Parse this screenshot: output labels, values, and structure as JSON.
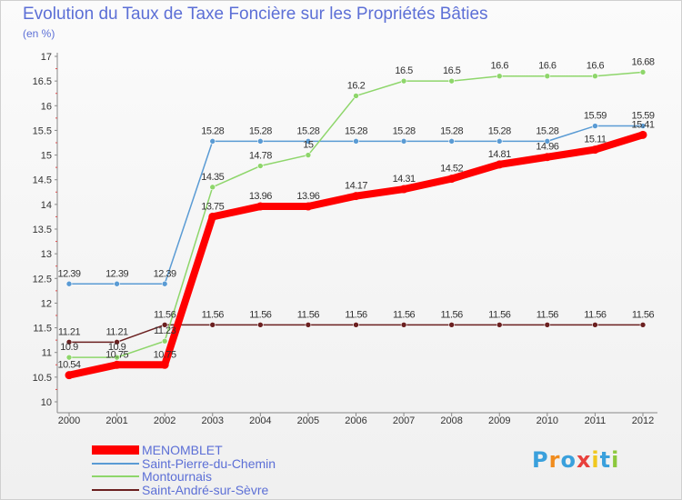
{
  "chart_data": {
    "type": "line",
    "title": "Evolution du Taux de Taxe Foncière sur les Propriétés Bâties",
    "unit_label": "(en %)",
    "xlabel": "",
    "ylabel": "(en %)",
    "categories": [
      "2000",
      "2001",
      "2002",
      "2003",
      "2004",
      "2005",
      "2006",
      "2007",
      "2008",
      "2009",
      "2010",
      "2011",
      "2012"
    ],
    "ylim": [
      10,
      17
    ],
    "yticks": [
      "10",
      "10.5",
      "11",
      "11.5",
      "12",
      "12.5",
      "13",
      "13.5",
      "14",
      "14.5",
      "15",
      "15.5",
      "16",
      "16.5",
      "17"
    ],
    "grid": false,
    "legend_position": "bottom-left",
    "series": [
      {
        "name": "Saint-André-sur-Sèvre",
        "color": "#6b2020",
        "values": [
          11.21,
          11.21,
          11.56,
          11.56,
          11.56,
          11.56,
          11.56,
          11.56,
          11.56,
          11.56,
          11.56,
          11.56,
          11.56
        ],
        "labels": [
          "11.21",
          "11.21",
          "11.56",
          "11.56",
          "11.56",
          "11.56",
          "11.56",
          "11.56",
          "11.56",
          "11.56",
          "11.56",
          "11.56",
          "11.56"
        ]
      },
      {
        "name": "Saint-Pierre-du-Chemin",
        "color": "#5a9bd4",
        "values": [
          12.39,
          12.39,
          12.39,
          15.28,
          15.28,
          15.28,
          15.28,
          15.28,
          15.28,
          15.28,
          15.28,
          15.59,
          15.59
        ],
        "labels": [
          "12.39",
          "12.39",
          "12.39",
          "15.28",
          "15.28",
          "15.28",
          "15.28",
          "15.28",
          "15.28",
          "15.28",
          "15.28",
          "15.59",
          "15.59"
        ]
      },
      {
        "name": "Montournais",
        "color": "#8ed66b",
        "values": [
          10.9,
          10.9,
          11.23,
          14.35,
          14.78,
          15,
          16.2,
          16.5,
          16.5,
          16.6,
          16.6,
          16.6,
          16.68
        ],
        "labels": [
          "10.9",
          "10.9",
          "11.23",
          "14.35",
          "14.78",
          "15",
          "16.2",
          "16.5",
          "16.5",
          "16.6",
          "16.6",
          "16.6",
          "16.68"
        ]
      },
      {
        "name": "MENOMBLET",
        "color": "#ff0000",
        "values": [
          10.54,
          10.75,
          10.75,
          13.75,
          13.96,
          13.96,
          14.17,
          14.31,
          14.52,
          14.81,
          14.96,
          15.11,
          15.41
        ],
        "labels": [
          "10.54",
          "10.75",
          "10.75",
          "13.75",
          "13.96",
          "13.96",
          "14.17",
          "14.31",
          "14.52",
          "14.81",
          "14.96",
          "15.11",
          "15.41"
        ]
      }
    ]
  },
  "legend": [
    {
      "label": "MENOMBLET",
      "color": "#ff0000"
    },
    {
      "label": "Saint-Pierre-du-Chemin",
      "color": "#5a9bd4"
    },
    {
      "label": "Montournais",
      "color": "#8ed66b"
    },
    {
      "label": "Saint-André-sur-Sèvre",
      "color": "#6b2020"
    }
  ],
  "brand": {
    "letters": [
      "P",
      "r",
      "o",
      "x",
      "i",
      "t",
      "i"
    ],
    "colors": [
      "#3aa0dc",
      "#f08c1e",
      "#3aa0dc",
      "#e8403c",
      "#f0c81e",
      "#3aa0dc",
      "#8cc83c"
    ]
  }
}
